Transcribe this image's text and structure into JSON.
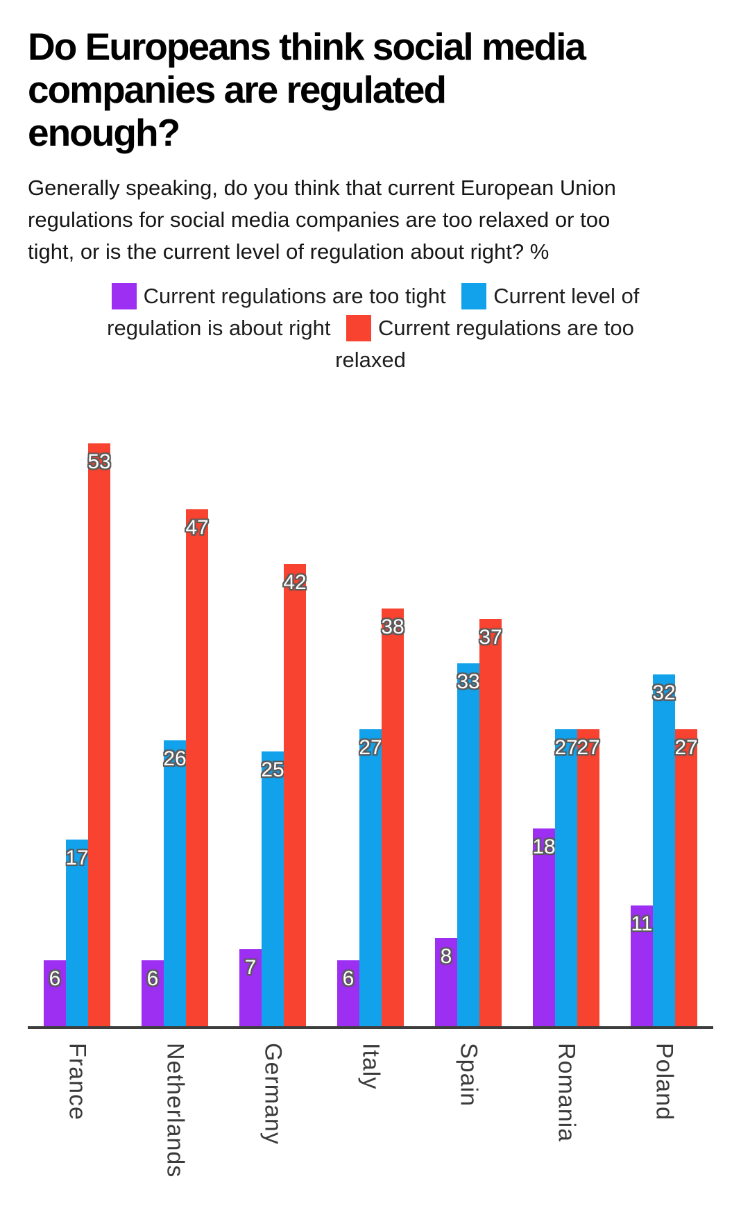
{
  "header": {
    "title_lines": [
      "Do Europeans think social media",
      "companies are regulated",
      "enough?"
    ],
    "subtitle_lines": [
      "Generally speaking, do you think that current European Union",
      "regulations for social media companies are too relaxed or too",
      "tight, or is the current level of regulation about right? %"
    ]
  },
  "chart_data": {
    "type": "bar",
    "title": "Do Europeans think social media companies are regulated enough?",
    "subtitle": "Generally speaking, do you think that current European Union regulations for social media companies are too relaxed or too tight, or is the current level of regulation about right? %",
    "unit": "%",
    "categories": [
      "France",
      "Netherlands",
      "Germany",
      "Italy",
      "Spain",
      "Romania",
      "Poland"
    ],
    "series": [
      {
        "name": "Current regulations are too tight",
        "color": "#9D2FF2",
        "values": [
          6,
          6,
          7,
          6,
          8,
          18,
          11
        ]
      },
      {
        "name": "Current level of regulation is about right",
        "color": "#12A2EB",
        "values": [
          17,
          26,
          25,
          27,
          33,
          27,
          32
        ]
      },
      {
        "name": "Current regulations are too relaxed",
        "color": "#F7432F",
        "values": [
          53,
          47,
          42,
          38,
          37,
          27,
          27
        ]
      }
    ],
    "ylim": [
      0,
      55.7
    ],
    "grid": false,
    "legend_position": "top-center",
    "value_labels": true,
    "axis_color": "#3d3d3d",
    "value_label_style": {
      "fill": "#ffffff",
      "outline": "#5a5a5a"
    }
  }
}
